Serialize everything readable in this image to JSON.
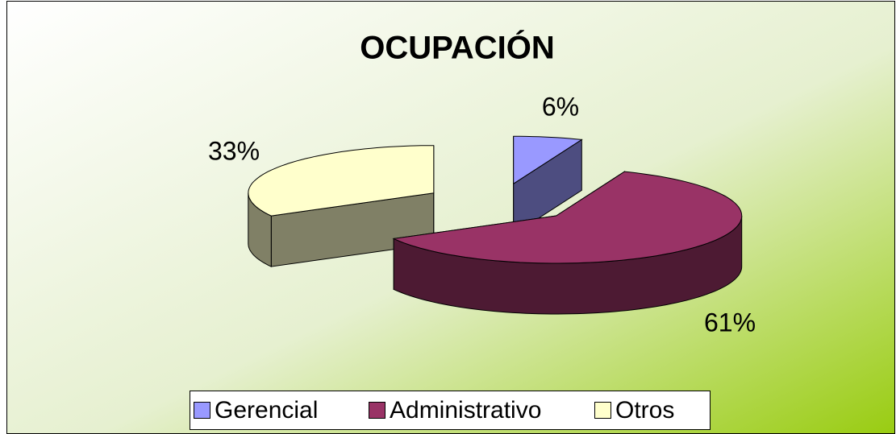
{
  "chart_data": {
    "type": "pie",
    "title": "OCUPACIÓN",
    "categories": [
      "Gerencial",
      "Administrativo",
      "Otros"
    ],
    "values": [
      6,
      61,
      33
    ],
    "value_labels": [
      "6%",
      "61%",
      "33%"
    ],
    "colors": [
      "#9999ff",
      "#993366",
      "#ffffcc"
    ],
    "legend": "bottom"
  }
}
